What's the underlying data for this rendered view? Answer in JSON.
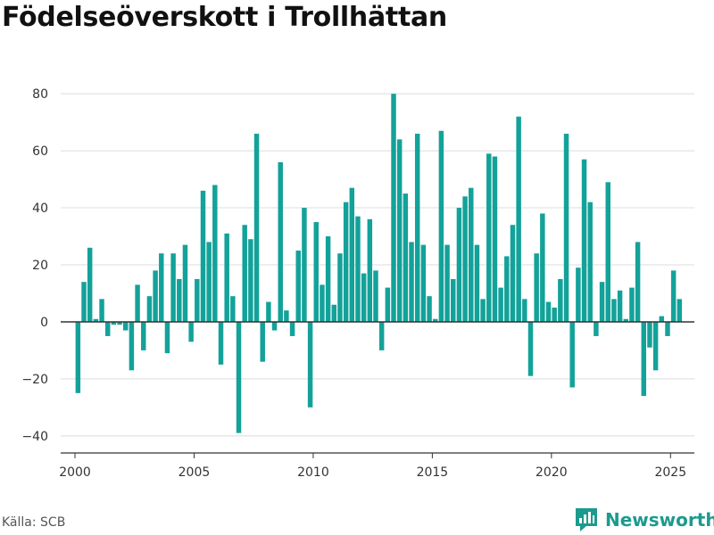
{
  "title": "Födelseöverskott i Trollhättan",
  "source": "Källa: SCB",
  "brand": {
    "name": "Newsworthy",
    "icon": "newsworthy-logo-icon",
    "color": "#1d9a8e"
  },
  "chart_data": {
    "type": "bar",
    "title": "Födelseöverskott i Trollhättan",
    "xlabel": "",
    "ylabel": "",
    "bar_color": "#13a29a",
    "grid": true,
    "xlim": [
      1999.4,
      2026.0
    ],
    "ylim": [
      -46,
      86
    ],
    "x_ticks": [
      2000,
      2005,
      2010,
      2015,
      2020,
      2025
    ],
    "y_ticks": [
      -40,
      -20,
      0,
      20,
      40,
      60,
      80
    ],
    "series": [
      {
        "x": [
          "2000-01",
          "2000-04",
          "2000-07",
          "2000-10",
          "2001-01",
          "2001-04",
          "2001-07",
          "2001-10",
          "2002-01",
          "2002-04",
          "2002-07",
          "2002-10",
          "2003-01",
          "2003-04",
          "2003-07",
          "2003-10",
          "2004-01",
          "2004-04",
          "2004-07",
          "2004-10",
          "2005-01",
          "2005-04",
          "2005-07",
          "2005-10",
          "2006-01",
          "2006-04",
          "2006-07",
          "2006-10",
          "2007-01",
          "2007-04",
          "2007-07",
          "2007-10",
          "2008-01",
          "2008-04",
          "2008-07",
          "2008-10",
          "2009-01",
          "2009-04",
          "2009-07",
          "2009-10",
          "2010-01",
          "2010-04",
          "2010-07",
          "2010-10",
          "2011-01",
          "2011-04",
          "2011-07",
          "2011-10",
          "2012-01",
          "2012-04",
          "2012-07",
          "2012-10",
          "2013-01",
          "2013-04",
          "2013-07",
          "2013-10",
          "2014-01",
          "2014-04",
          "2014-07",
          "2014-10",
          "2015-01",
          "2015-04",
          "2015-07",
          "2015-10",
          "2016-01",
          "2016-04",
          "2016-07",
          "2016-10",
          "2017-01",
          "2017-04",
          "2017-07",
          "2017-10",
          "2018-01",
          "2018-04",
          "2018-07",
          "2018-10",
          "2019-01",
          "2019-04",
          "2019-07",
          "2019-10",
          "2020-01",
          "2020-04",
          "2020-07",
          "2020-10",
          "2021-01",
          "2021-04",
          "2021-07",
          "2021-10",
          "2022-01",
          "2022-04",
          "2022-07",
          "2022-10",
          "2023-01",
          "2023-04",
          "2023-07",
          "2023-10",
          "2024-01",
          "2024-04",
          "2024-07",
          "2024-10",
          "2025-01",
          "2025-04"
        ],
        "values": [
          -25,
          14,
          26,
          1,
          8,
          -5,
          -1,
          -1,
          -3,
          -17,
          13,
          -10,
          9,
          18,
          24,
          -11,
          24,
          15,
          27,
          -7,
          15,
          46,
          28,
          48,
          -15,
          31,
          9,
          -39,
          34,
          29,
          66,
          -14,
          7,
          -3,
          56,
          4,
          -5,
          25,
          40,
          -30,
          35,
          13,
          30,
          6,
          24,
          42,
          47,
          37,
          17,
          36,
          18,
          -10,
          12,
          80,
          64,
          45,
          28,
          66,
          27,
          9,
          1,
          67,
          27,
          15,
          40,
          44,
          47,
          27,
          8,
          59,
          58,
          12,
          23,
          34,
          72,
          8,
          -19,
          24,
          38,
          7,
          5,
          15,
          66,
          -23,
          19,
          57,
          42,
          -5,
          14,
          49,
          8,
          11,
          1,
          12,
          28,
          -26,
          -9,
          -17,
          2,
          -5,
          18,
          8
        ]
      }
    ]
  }
}
